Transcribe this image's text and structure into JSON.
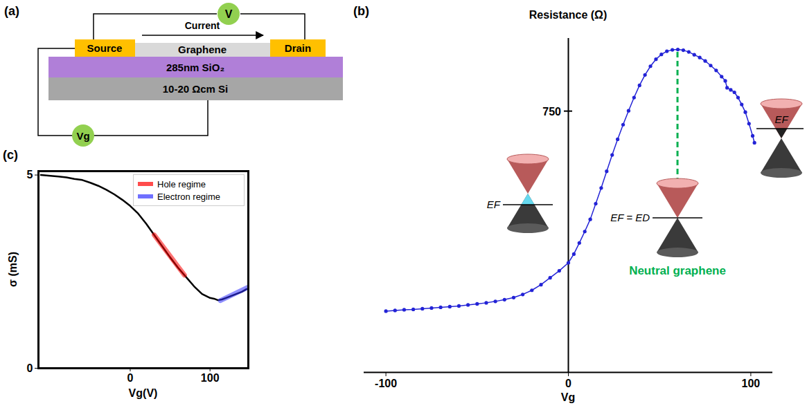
{
  "diagram": {
    "title": "(a)",
    "meter": "V",
    "current": "Current",
    "source": "Source",
    "channel": "Graphene",
    "drain": "Drain",
    "oxide": "285nm SiO₂",
    "substrate": "10-20 Ωcm Si",
    "gate": "Vg"
  },
  "chart_data": [
    {
      "type": "line",
      "marker": "circle",
      "title": "(b)",
      "xlabel": "Vg",
      "ylabel": "Resistance (Ω)",
      "color": "#2323d6",
      "x": [
        -100,
        -95,
        -90,
        -85,
        -80,
        -75,
        -70,
        -65,
        -60,
        -55,
        -50,
        -45,
        -40,
        -35,
        -30,
        -25,
        -20,
        -15,
        -10,
        -5,
        0,
        3,
        6,
        9,
        12,
        15,
        18,
        21,
        24,
        27,
        30,
        33,
        36,
        39,
        42,
        45,
        48,
        51,
        54,
        57,
        60,
        63,
        66,
        69,
        72,
        75,
        78,
        81,
        84,
        86,
        87,
        89,
        91,
        93,
        95,
        97,
        99,
        101,
        102
      ],
      "values": [
        176,
        178,
        180,
        181,
        183,
        185,
        187,
        189,
        191,
        194,
        197,
        200,
        204,
        209,
        215,
        224,
        236,
        252,
        272,
        292,
        315,
        340,
        372,
        405,
        440,
        485,
        530,
        578,
        625,
        670,
        712,
        752,
        790,
        825,
        855,
        880,
        900,
        914,
        923,
        927,
        928,
        926,
        921,
        913,
        905,
        895,
        882,
        868,
        850,
        838,
        818,
        812,
        805,
        790,
        770,
        748,
        715,
        680,
        660
      ],
      "xlim": [
        -112,
        112
      ],
      "ylim": [
        0,
        960
      ],
      "xticks": [
        -100,
        0,
        100
      ],
      "yticks": [
        750
      ],
      "dirac_point": {
        "x": 60,
        "label": "Neutral graphene"
      },
      "annotations": [
        {
          "text": "EF",
          "doping": "hole"
        },
        {
          "text": "EF = ED",
          "doping": "neutral"
        },
        {
          "text": "EF",
          "doping": "electron"
        }
      ]
    },
    {
      "type": "line",
      "title": "(c)",
      "xlabel": "Vg(V)",
      "ylabel": "σ (mS)",
      "color": "#000000",
      "x": [
        -112,
        -100,
        -90,
        -80,
        -70,
        -60,
        -50,
        -40,
        -30,
        -20,
        -10,
        0,
        10,
        20,
        30,
        40,
        50,
        60,
        70,
        80,
        90,
        100,
        105,
        110,
        115,
        120,
        130,
        140,
        146
      ],
      "values": [
        5.0,
        4.98,
        4.96,
        4.94,
        4.9,
        4.87,
        4.8,
        4.72,
        4.62,
        4.5,
        4.36,
        4.2,
        4.0,
        3.74,
        3.45,
        3.16,
        2.87,
        2.6,
        2.36,
        2.12,
        1.92,
        1.82,
        1.8,
        1.76,
        1.78,
        1.82,
        1.9,
        1.98,
        2.05
      ],
      "series": [
        {
          "name": "Hole regime",
          "color": "#ff0000",
          "x": [
            30,
            68
          ],
          "values": [
            3.45,
            2.41
          ]
        },
        {
          "name": "Electron regime",
          "color": "#3333ff",
          "x": [
            113,
            148
          ],
          "values": [
            1.75,
            2.1
          ]
        }
      ],
      "xlim": [
        -115,
        148
      ],
      "ylim": [
        0,
        5.1
      ],
      "xticks": [
        0,
        100
      ],
      "yticks": [
        0,
        5
      ],
      "legend": "top-right"
    }
  ]
}
